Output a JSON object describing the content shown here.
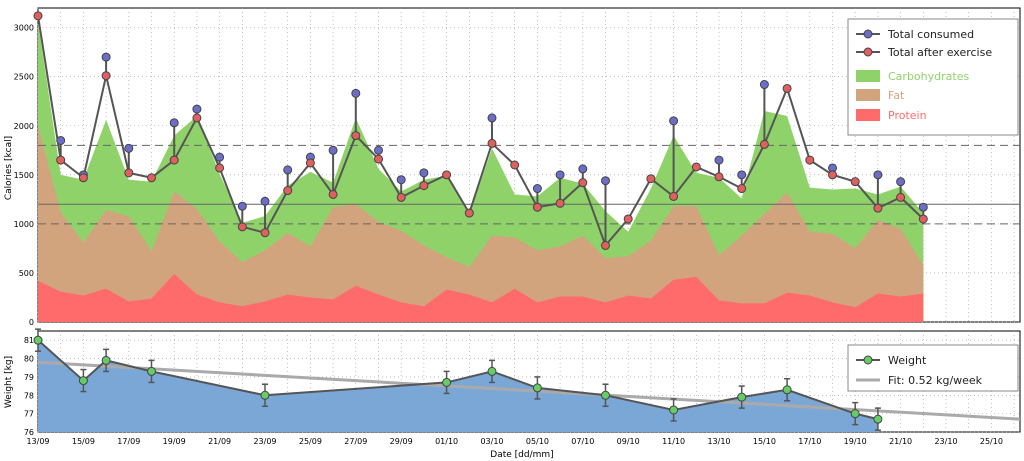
{
  "chart_data": [
    {
      "type": "area",
      "ylabel": "Calories [kcal]",
      "ylim": [
        0,
        3200
      ],
      "yticks": [
        0,
        500,
        1000,
        1500,
        2000,
        2500,
        3000
      ],
      "dates": [
        "13/09",
        "14/09",
        "15/09",
        "16/09",
        "17/09",
        "18/09",
        "19/09",
        "20/09",
        "21/09",
        "22/09",
        "23/09",
        "24/09",
        "25/09",
        "26/09",
        "27/09",
        "28/09",
        "29/09",
        "30/09",
        "01/10",
        "02/10",
        "03/10",
        "04/10",
        "05/10",
        "06/10",
        "07/10",
        "08/10",
        "09/10",
        "10/10",
        "11/10",
        "12/10",
        "13/10",
        "14/10",
        "15/10",
        "16/10",
        "17/10",
        "18/10",
        "19/10",
        "20/10",
        "21/10",
        "22/10"
      ],
      "series": [
        {
          "name": "Total consumed",
          "values": [
            3120,
            1850,
            1500,
            2700,
            1770,
            1470,
            2030,
            2170,
            1680,
            1180,
            1230,
            1550,
            1680,
            1750,
            2330,
            1750,
            1450,
            1520,
            1500,
            1110,
            2080,
            1600,
            1360,
            1500,
            1560,
            1440,
            1050,
            1460,
            2050,
            1580,
            1650,
            1500,
            2420,
            2380,
            1650,
            1570,
            1430,
            1500,
            1430,
            1170
          ]
        },
        {
          "name": "Total after exercise",
          "values": [
            3120,
            1650,
            1470,
            2510,
            1520,
            1470,
            1650,
            2080,
            1570,
            970,
            910,
            1340,
            1620,
            1300,
            1900,
            1660,
            1270,
            1390,
            1500,
            1110,
            1820,
            1600,
            1170,
            1210,
            1420,
            780,
            1050,
            1460,
            1280,
            1580,
            1480,
            1360,
            1810,
            2380,
            1650,
            1500,
            1430,
            1160,
            1270,
            1050
          ]
        },
        {
          "name": "Carbohydrates",
          "values": [
            3060,
            1500,
            1450,
            2060,
            1450,
            1430,
            1900,
            2100,
            1510,
            1010,
            1080,
            1390,
            1530,
            1420,
            2080,
            1560,
            1330,
            1450,
            1490,
            1090,
            1770,
            1300,
            1280,
            1470,
            1410,
            1130,
            920,
            1360,
            1900,
            1520,
            1470,
            1260,
            2150,
            2100,
            1370,
            1350,
            1360,
            1300,
            1380,
            1110
          ]
        },
        {
          "name": "Fat",
          "values": [
            2000,
            1120,
            810,
            1140,
            1080,
            720,
            1330,
            1150,
            820,
            610,
            730,
            910,
            770,
            1170,
            1200,
            1020,
            930,
            780,
            660,
            560,
            880,
            860,
            730,
            770,
            880,
            650,
            670,
            830,
            1180,
            1180,
            680,
            880,
            1100,
            1320,
            920,
            900,
            750,
            1040,
            950,
            580
          ]
        },
        {
          "name": "Protein",
          "values": [
            420,
            310,
            270,
            340,
            210,
            240,
            490,
            280,
            200,
            160,
            210,
            280,
            250,
            230,
            370,
            280,
            200,
            160,
            330,
            280,
            200,
            340,
            200,
            260,
            260,
            200,
            270,
            240,
            430,
            460,
            220,
            190,
            190,
            300,
            270,
            200,
            150,
            290,
            260,
            290
          ]
        }
      ],
      "hlines": [
        {
          "y": 1200,
          "style": "solid"
        },
        {
          "y": 1800,
          "style": "dashed"
        },
        {
          "y": 1000,
          "style": "dashed"
        }
      ],
      "colors": {
        "consumed_marker": "#6a6ec8",
        "after_marker": "#e06060",
        "carbs": "#90d26a",
        "fat": "#d2a47e",
        "protein": "#ff6b6b",
        "line": "#555555"
      }
    },
    {
      "type": "line",
      "ylabel": "Weight [kg]",
      "xlabel": "Date [dd/mm]",
      "ylim": [
        76,
        81.5
      ],
      "yticks": [
        76,
        77,
        78,
        79,
        80,
        81
      ],
      "xticks": [
        "13/09",
        "15/09",
        "17/09",
        "19/09",
        "21/09",
        "23/09",
        "25/09",
        "27/09",
        "29/09",
        "01/10",
        "03/10",
        "05/10",
        "07/10",
        "09/10",
        "11/10",
        "13/10",
        "15/10",
        "17/10",
        "19/10",
        "21/10",
        "23/10",
        "25/10"
      ],
      "series": [
        {
          "name": "Weight",
          "points": [
            {
              "date": "13/09",
              "value": 81.0
            },
            {
              "date": "16/09",
              "value": 78.8
            },
            {
              "date": "16/09b",
              "value": 79.9
            },
            {
              "date": "18/09",
              "value": 79.3
            },
            {
              "date": "23/09",
              "value": 78.0
            },
            {
              "date": "01/10",
              "value": 78.7
            },
            {
              "date": "03/10",
              "value": 79.3
            },
            {
              "date": "05/10",
              "value": 78.4
            },
            {
              "date": "08/10",
              "value": 78.0
            },
            {
              "date": "11/10",
              "value": 77.2
            },
            {
              "date": "14/10",
              "value": 77.9
            },
            {
              "date": "16/10",
              "value": 78.3
            },
            {
              "date": "19/10",
              "value": 77.0
            },
            {
              "date": "20/10",
              "value": 76.7
            }
          ],
          "error": 0.6
        },
        {
          "name": "Fit: 0.52 kg/week",
          "from": 79.8,
          "to": 76.7
        }
      ],
      "colors": {
        "fill": "#7ba7d7",
        "marker": "#66cc66",
        "line": "#555555",
        "fit": "#aaaaaa"
      }
    }
  ]
}
